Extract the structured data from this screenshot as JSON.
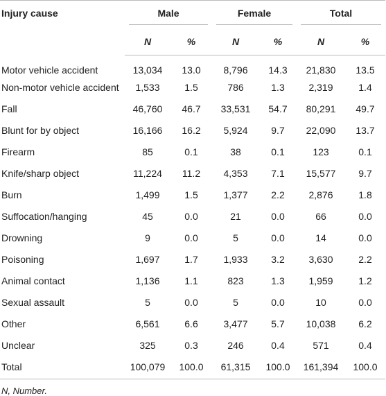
{
  "table": {
    "stub_header": "Injury cause",
    "groups": [
      "Male",
      "Female",
      "Total"
    ],
    "subheaders": [
      "N",
      "%",
      "N",
      "%",
      "N",
      "%"
    ],
    "rows": [
      [
        "Motor vehicle accident",
        "13,034",
        "13.0",
        "8,796",
        "14.3",
        "21,830",
        "13.5"
      ],
      [
        "Non-motor vehicle accident",
        "1,533",
        "1.5",
        "786",
        "1.3",
        "2,319",
        "1.4"
      ],
      [
        "Fall",
        "46,760",
        "46.7",
        "33,531",
        "54.7",
        "80,291",
        "49.7"
      ],
      [
        "Blunt for by object",
        "16,166",
        "16.2",
        "5,924",
        "9.7",
        "22,090",
        "13.7"
      ],
      [
        "Firearm",
        "85",
        "0.1",
        "38",
        "0.1",
        "123",
        "0.1"
      ],
      [
        "Knife/sharp object",
        "11,224",
        "11.2",
        "4,353",
        "7.1",
        "15,577",
        "9.7"
      ],
      [
        "Burn",
        "1,499",
        "1.5",
        "1,377",
        "2.2",
        "2,876",
        "1.8"
      ],
      [
        "Suffocation/hanging",
        "45",
        "0.0",
        "21",
        "0.0",
        "66",
        "0.0"
      ],
      [
        "Drowning",
        "9",
        "0.0",
        "5",
        "0.0",
        "14",
        "0.0"
      ],
      [
        "Poisoning",
        "1,697",
        "1.7",
        "1,933",
        "3.2",
        "3,630",
        "2.2"
      ],
      [
        "Animal contact",
        "1,136",
        "1.1",
        "823",
        "1.3",
        "1,959",
        "1.2"
      ],
      [
        "Sexual assault",
        "5",
        "0.0",
        "5",
        "0.0",
        "10",
        "0.0"
      ],
      [
        "Other",
        "6,561",
        "6.6",
        "3,477",
        "5.7",
        "10,038",
        "6.2"
      ],
      [
        "Unclear",
        "325",
        "0.3",
        "246",
        "0.4",
        "571",
        "0.4"
      ],
      [
        "Total",
        "100,079",
        "100.0",
        "61,315",
        "100.0",
        "161,394",
        "100.0"
      ]
    ],
    "footnote": "N, Number."
  }
}
